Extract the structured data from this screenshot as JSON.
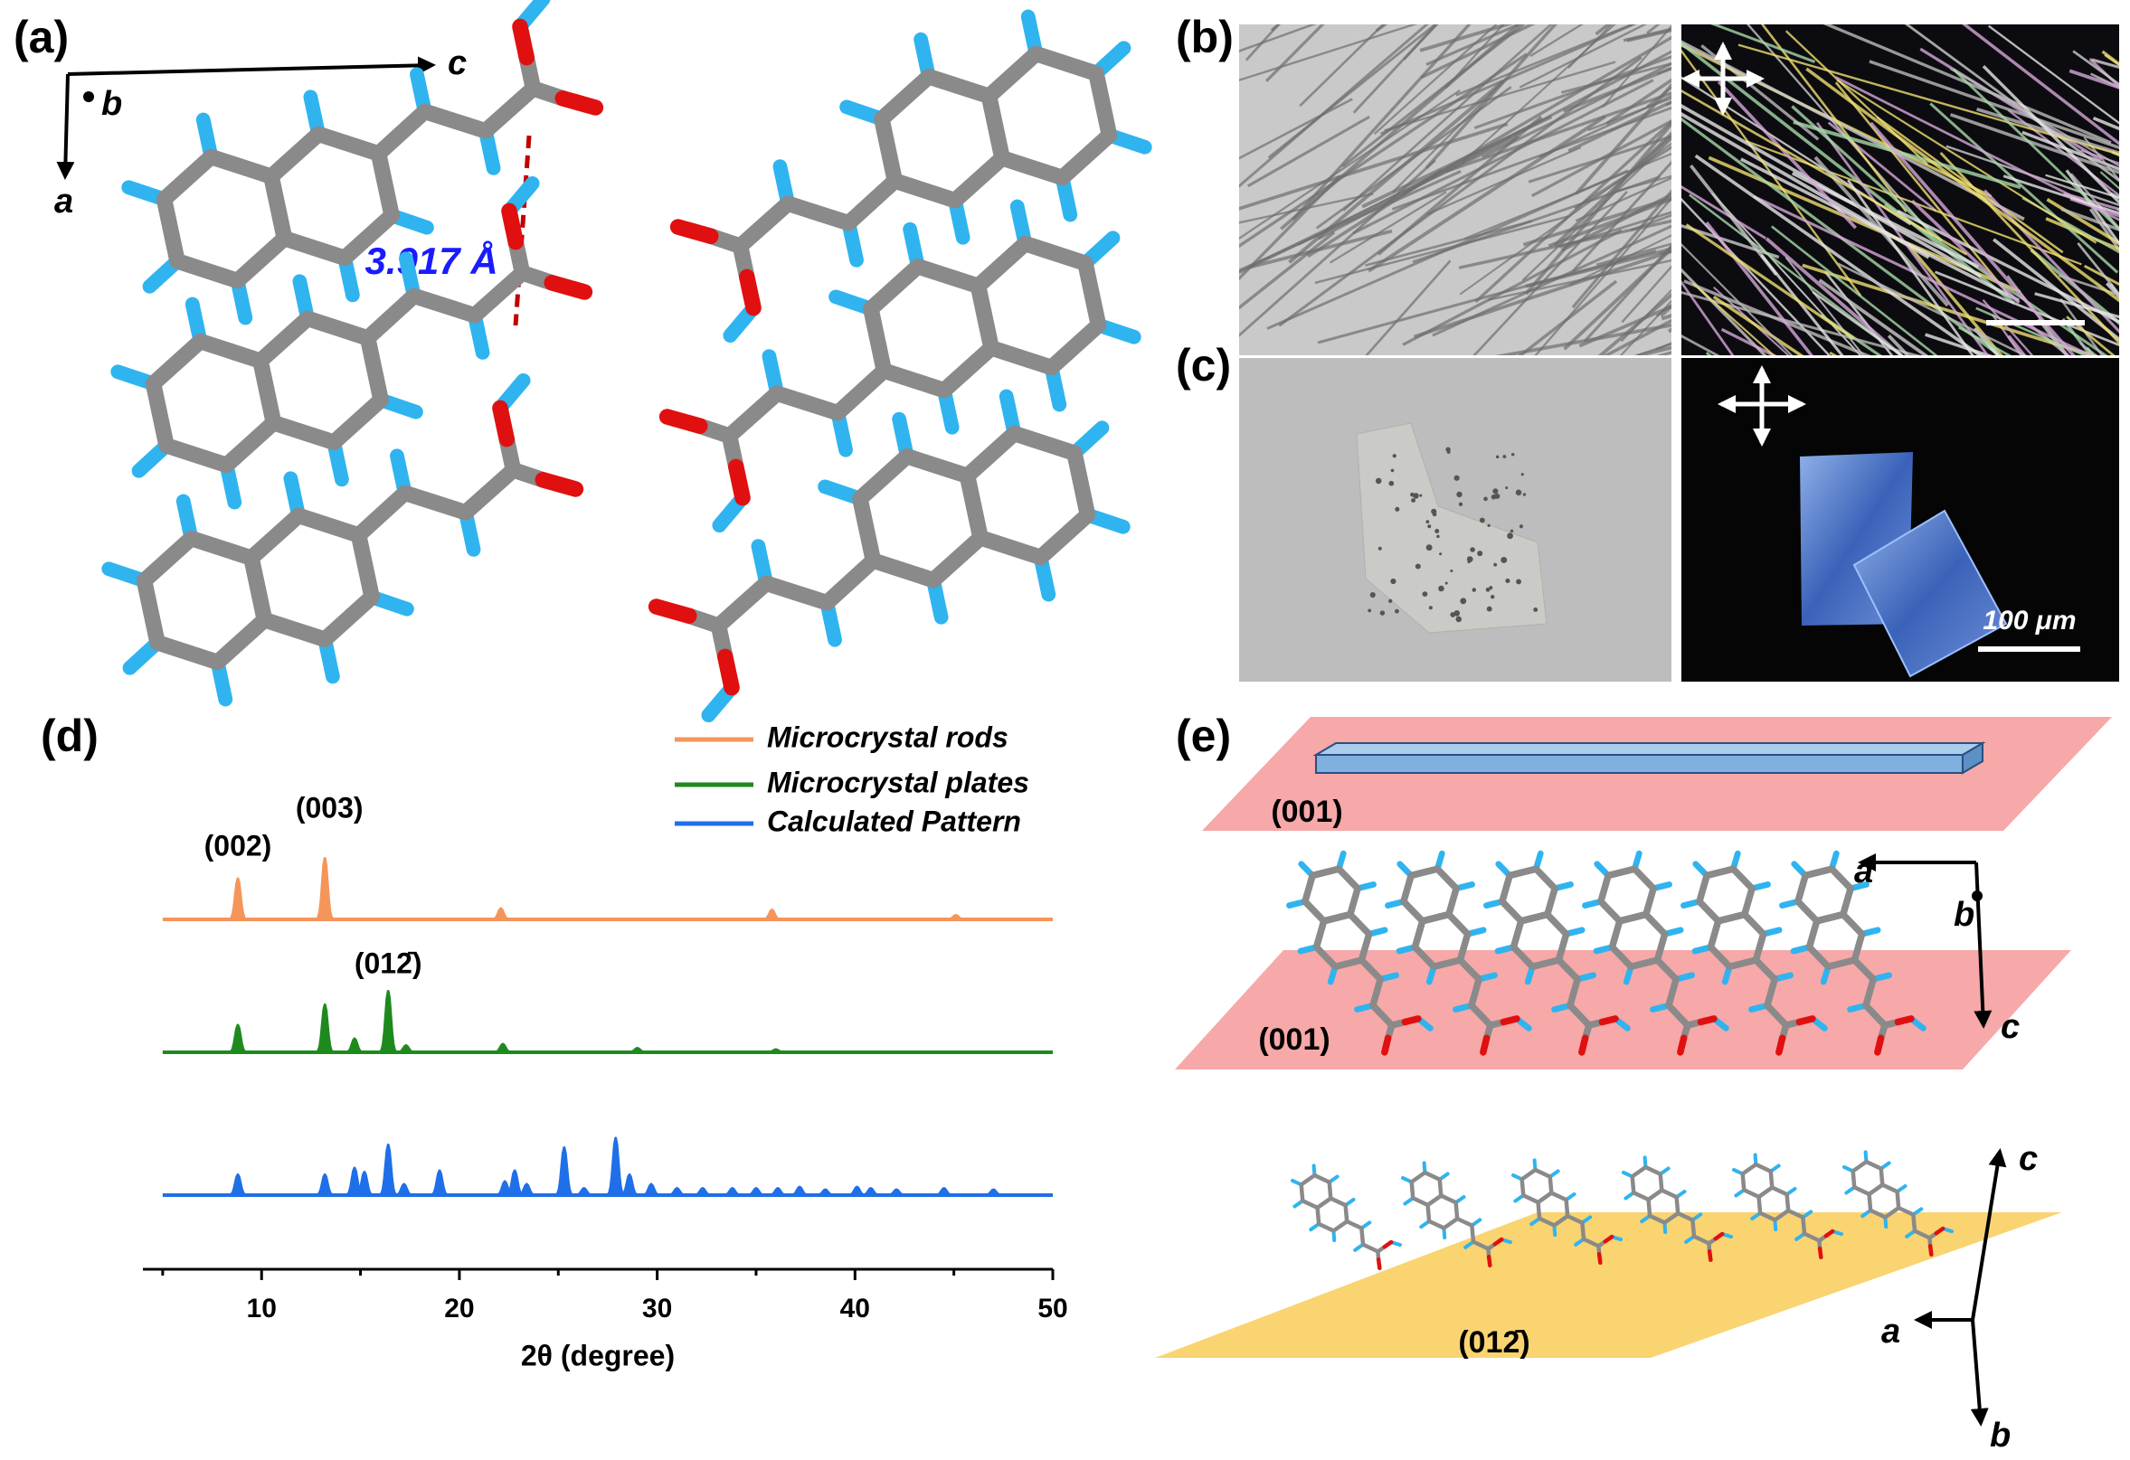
{
  "panel_a": {
    "label": "(a)",
    "axis_c": "c",
    "axis_b": "b",
    "axis_a": "a",
    "distance": "3.917 Å"
  },
  "panel_b": {
    "label": "(b)"
  },
  "panel_c": {
    "label": "(c)",
    "scale_bar": "100 μm"
  },
  "panel_d": {
    "label": "(d)"
  },
  "chart_data": {
    "type": "line",
    "xlabel": "2θ (degree)",
    "xlim": [
      4,
      50
    ],
    "xticks": [
      10,
      20,
      30,
      40,
      50
    ],
    "annotations": [
      {
        "text": "(002)",
        "x": 8.8
      },
      {
        "text": "(003)",
        "x": 13.2
      },
      {
        "text": "(012̄)",
        "x": 16.4
      }
    ],
    "series": [
      {
        "name": "Microcrystal rods",
        "color": "#f5955a",
        "x": [
          8.8,
          13.2,
          22.1,
          35.8,
          45.1
        ],
        "values": [
          30,
          45,
          8,
          7,
          3
        ]
      },
      {
        "name": "Microcrystal plates",
        "color": "#1e8a1e",
        "x": [
          8.8,
          13.2,
          14.7,
          16.4,
          17.3,
          22.2,
          29.0,
          36.0
        ],
        "values": [
          20,
          35,
          10,
          45,
          5,
          6,
          3,
          2
        ]
      },
      {
        "name": "Calculated Pattern",
        "color": "#1f6fe8",
        "x": [
          8.8,
          13.2,
          14.7,
          15.2,
          16.4,
          17.2,
          19.0,
          22.3,
          22.8,
          23.4,
          25.3,
          26.3,
          27.9,
          28.6,
          29.7,
          31.0,
          32.3,
          33.8,
          35.0,
          36.1,
          37.2,
          38.5,
          40.1,
          40.8,
          42.1,
          44.5,
          47.0
        ],
        "values": [
          15,
          15,
          20,
          17,
          37,
          8,
          18,
          10,
          18,
          8,
          35,
          5,
          42,
          15,
          8,
          5,
          5,
          5,
          5,
          5,
          6,
          4,
          6,
          5,
          4,
          5,
          4
        ]
      }
    ]
  },
  "panel_e": {
    "label": "(e)",
    "plane_top": "(001)",
    "plane_middle": "(001)",
    "plane_bottom": "(012̄)",
    "axes_middle": {
      "a": "a",
      "b": "b",
      "c": "c"
    },
    "axes_bottom": {
      "c": "c",
      "a": "a",
      "b": "b"
    }
  }
}
